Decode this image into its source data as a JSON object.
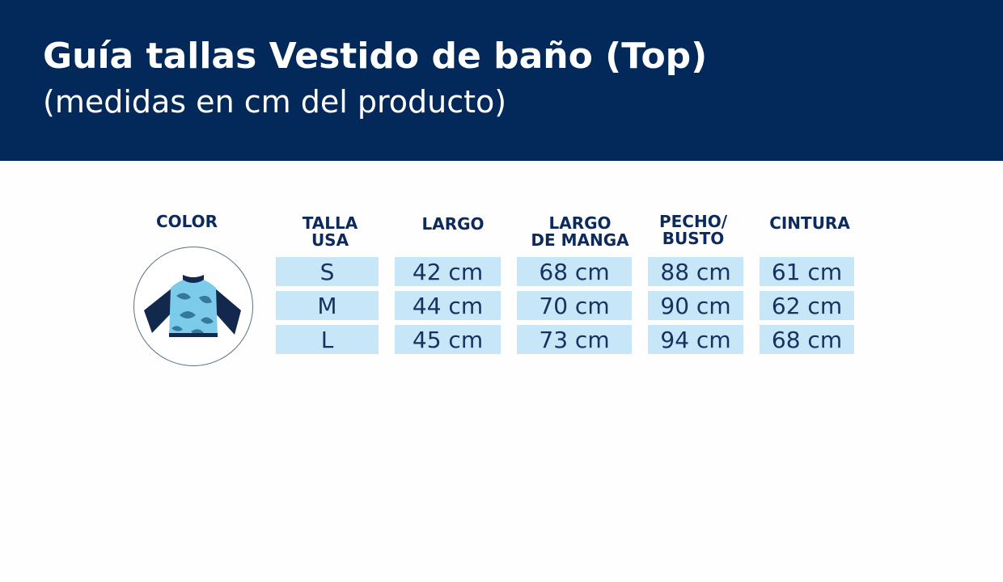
{
  "header": {
    "title": "Guía tallas Vestido de baño (Top)",
    "subtitle": "(medidas en cm del producto)"
  },
  "columns": {
    "color": "COLOR",
    "talla": [
      "TALLA",
      "USA"
    ],
    "largo": "LARGO",
    "largo_manga": [
      "LARGO",
      "DE MANGA"
    ],
    "pecho": [
      "PECHO/",
      "BUSTO"
    ],
    "cintura": "CINTURA"
  },
  "rows": [
    {
      "talla": "S",
      "largo": "42 cm",
      "largo_manga": "68 cm",
      "pecho": "88 cm",
      "cintura": "61 cm"
    },
    {
      "talla": "M",
      "largo": "44 cm",
      "largo_manga": "70 cm",
      "pecho": "90 cm",
      "cintura": "62 cm"
    },
    {
      "talla": "L",
      "largo": "45 cm",
      "largo_manga": "73 cm",
      "pecho": "94 cm",
      "cintura": "68 cm"
    }
  ],
  "product_image": {
    "icon": "swim-top-icon",
    "colors": {
      "sleeves": "#12284d",
      "body": "#7ccbea",
      "print": "#2d6f95"
    }
  },
  "theme": {
    "banner": "#03295a",
    "cell": "#c7e6f8",
    "text": "#0d2a5c"
  }
}
